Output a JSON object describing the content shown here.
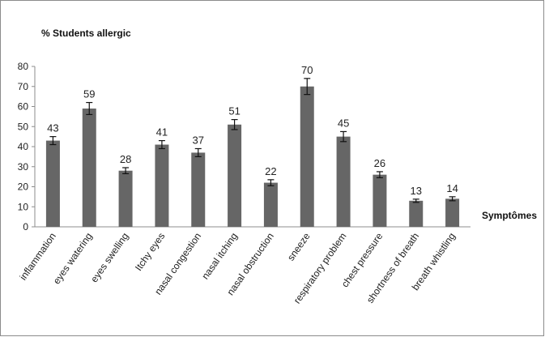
{
  "chart_data": {
    "type": "bar",
    "title": "",
    "ylabel": "% Students allergic",
    "xlabel": "Symptômes",
    "ylim": [
      0,
      80
    ],
    "yticks": [
      0,
      10,
      20,
      30,
      40,
      50,
      60,
      70,
      80
    ],
    "grid": false,
    "legend": "none",
    "bar_color": "#666666",
    "categories": [
      "inflammation",
      "eyes watering",
      "eyes swelling",
      "Itchy eyes",
      "nasal congestion",
      "nasal itching",
      "nasal obstruction",
      "sneeze",
      "respiratory problem",
      "chest pressure",
      "shortness of breath",
      "breath whistling"
    ],
    "values": [
      43,
      59,
      28,
      41,
      37,
      51,
      22,
      70,
      45,
      26,
      13,
      14
    ],
    "error": [
      2,
      3,
      1.5,
      2,
      2,
      2.5,
      1.5,
      4,
      2.5,
      1.5,
      0.8,
      1
    ]
  }
}
